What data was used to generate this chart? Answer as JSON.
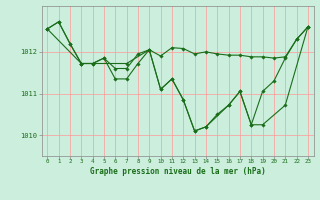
{
  "bg_color": "#cceedd",
  "grid_color": "#ff9999",
  "line_color": "#1a6e1a",
  "marker_color": "#1a6e1a",
  "xlabel": "Graphe pression niveau de la mer (hPa)",
  "xlim": [
    -0.5,
    23.5
  ],
  "ylim": [
    1009.5,
    1013.1
  ],
  "yticks": [
    1010,
    1011,
    1012
  ],
  "xticks": [
    0,
    1,
    2,
    3,
    4,
    5,
    6,
    7,
    8,
    9,
    10,
    11,
    12,
    13,
    14,
    15,
    16,
    17,
    18,
    19,
    20,
    21,
    22,
    23
  ],
  "series1": [
    [
      0,
      1012.55
    ],
    [
      1,
      1012.72
    ],
    [
      2,
      1012.2
    ],
    [
      3,
      1011.72
    ],
    [
      4,
      1011.72
    ],
    [
      5,
      1011.85
    ],
    [
      6,
      1011.6
    ],
    [
      7,
      1011.6
    ],
    [
      8,
      1011.95
    ],
    [
      9,
      1012.05
    ],
    [
      10,
      1011.9
    ],
    [
      11,
      1012.1
    ],
    [
      12,
      1012.08
    ],
    [
      13,
      1011.95
    ],
    [
      14,
      1012.0
    ],
    [
      15,
      1011.95
    ],
    [
      16,
      1011.92
    ],
    [
      17,
      1011.92
    ],
    [
      18,
      1011.88
    ],
    [
      19,
      1011.88
    ],
    [
      20,
      1011.85
    ],
    [
      21,
      1011.88
    ],
    [
      22,
      1012.3
    ],
    [
      23,
      1012.6
    ]
  ],
  "series2": [
    [
      0,
      1012.55
    ],
    [
      1,
      1012.72
    ],
    [
      2,
      1012.2
    ],
    [
      3,
      1011.72
    ],
    [
      4,
      1011.72
    ],
    [
      5,
      1011.85
    ],
    [
      6,
      1011.35
    ],
    [
      7,
      1011.35
    ],
    [
      8,
      1011.72
    ],
    [
      9,
      1012.05
    ],
    [
      10,
      1011.1
    ],
    [
      11,
      1011.35
    ],
    [
      12,
      1010.85
    ],
    [
      13,
      1010.1
    ],
    [
      14,
      1010.2
    ],
    [
      15,
      1010.5
    ],
    [
      16,
      1010.72
    ],
    [
      17,
      1011.05
    ],
    [
      18,
      1010.25
    ],
    [
      19,
      1011.05
    ],
    [
      20,
      1011.3
    ],
    [
      21,
      1011.85
    ],
    [
      22,
      1012.3
    ],
    [
      23,
      1012.6
    ]
  ],
  "series3": [
    [
      0,
      1012.55
    ],
    [
      3,
      1011.72
    ],
    [
      7,
      1011.72
    ],
    [
      9,
      1012.05
    ],
    [
      10,
      1011.1
    ],
    [
      11,
      1011.35
    ],
    [
      12,
      1010.85
    ],
    [
      13,
      1010.1
    ],
    [
      14,
      1010.2
    ],
    [
      16,
      1010.72
    ],
    [
      17,
      1011.05
    ],
    [
      18,
      1010.25
    ],
    [
      19,
      1010.25
    ],
    [
      21,
      1010.72
    ],
    [
      23,
      1012.6
    ]
  ]
}
